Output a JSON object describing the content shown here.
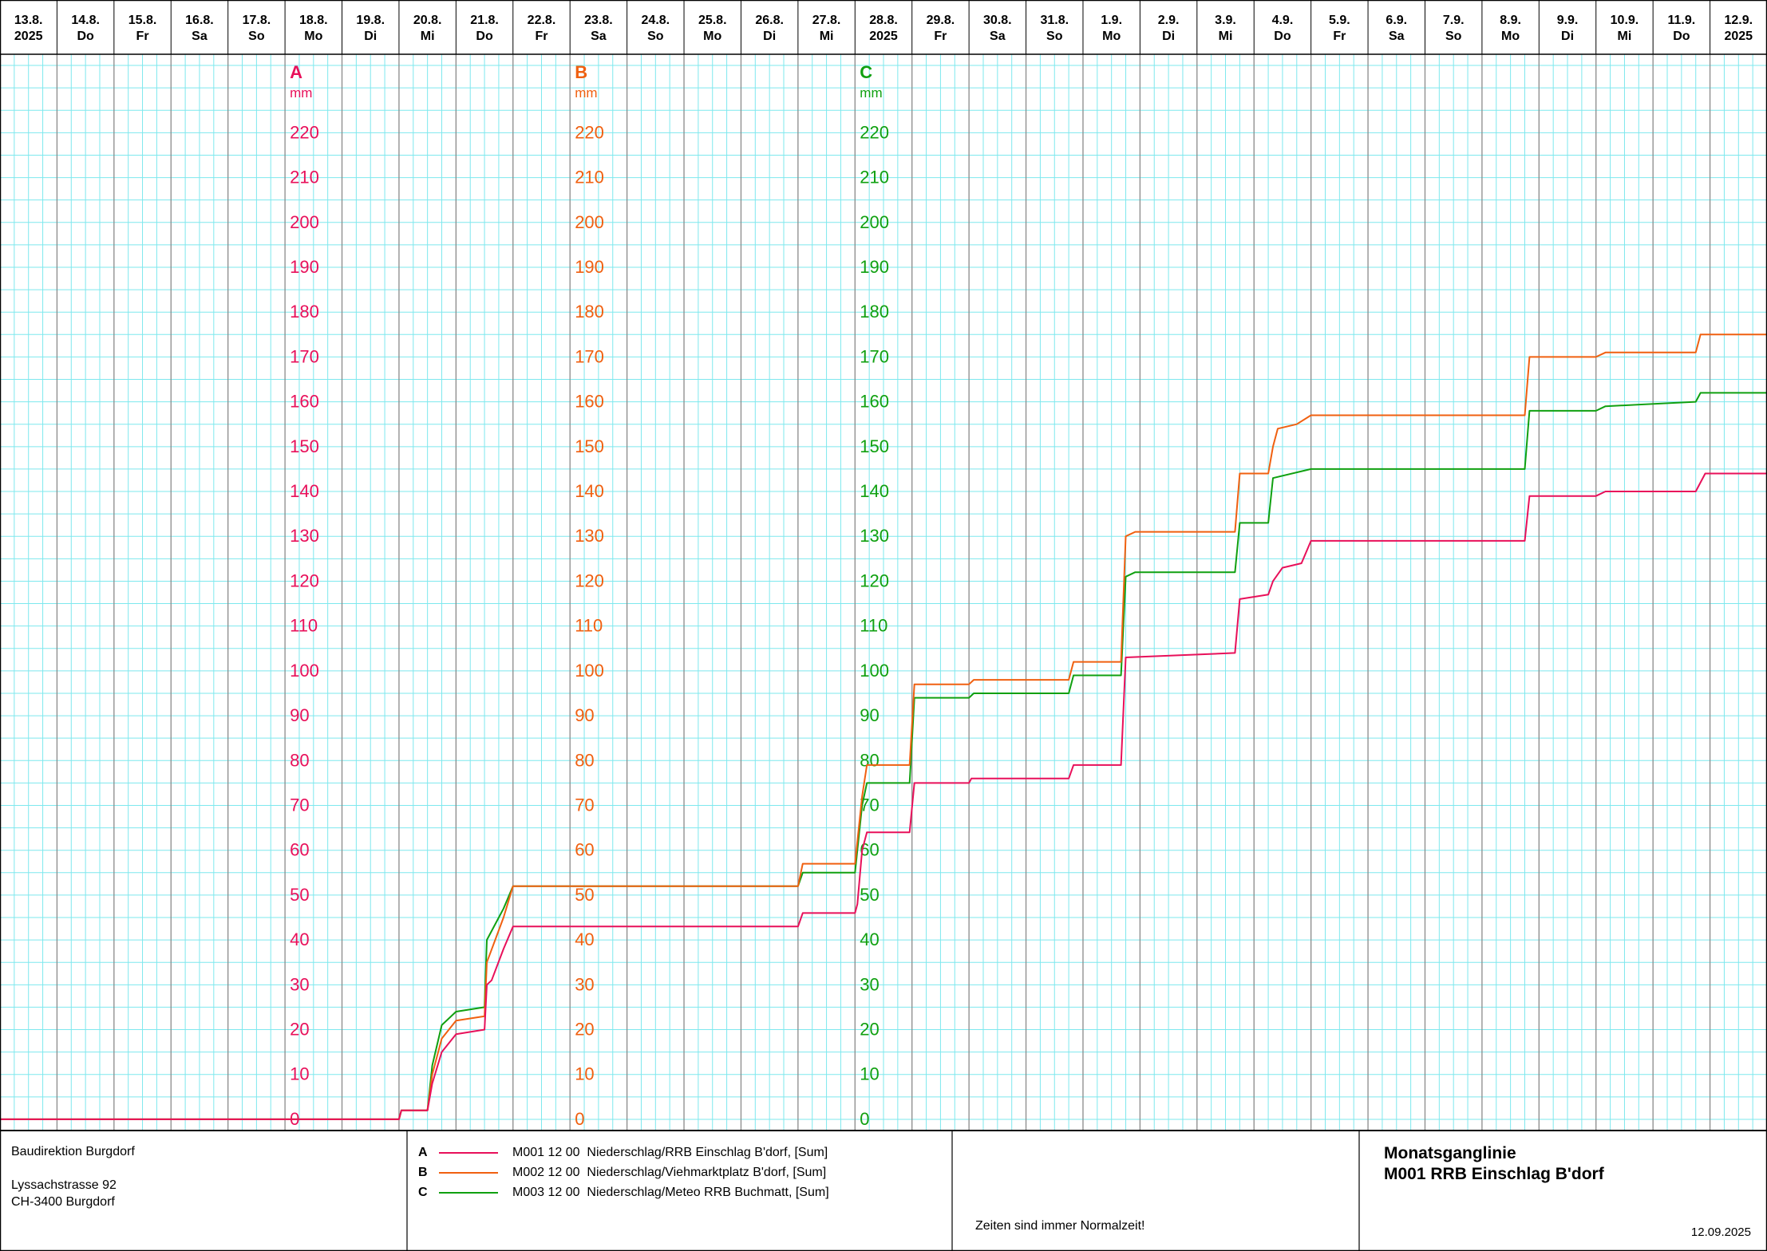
{
  "chart_data": {
    "type": "line",
    "x_axis": {
      "days": [
        {
          "date": "13.8.",
          "sub": "2025"
        },
        {
          "date": "14.8.",
          "sub": "Do"
        },
        {
          "date": "15.8.",
          "sub": "Fr"
        },
        {
          "date": "16.8.",
          "sub": "Sa"
        },
        {
          "date": "17.8.",
          "sub": "So"
        },
        {
          "date": "18.8.",
          "sub": "Mo"
        },
        {
          "date": "19.8.",
          "sub": "Di"
        },
        {
          "date": "20.8.",
          "sub": "Mi"
        },
        {
          "date": "21.8.",
          "sub": "Do"
        },
        {
          "date": "22.8.",
          "sub": "Fr"
        },
        {
          "date": "23.8.",
          "sub": "Sa"
        },
        {
          "date": "24.8.",
          "sub": "So"
        },
        {
          "date": "25.8.",
          "sub": "Mo"
        },
        {
          "date": "26.8.",
          "sub": "Di"
        },
        {
          "date": "27.8.",
          "sub": "Mi"
        },
        {
          "date": "28.8.",
          "sub": "2025"
        },
        {
          "date": "29.8.",
          "sub": "Fr"
        },
        {
          "date": "30.8.",
          "sub": "Sa"
        },
        {
          "date": "31.8.",
          "sub": "So"
        },
        {
          "date": "1.9.",
          "sub": "Mo"
        },
        {
          "date": "2.9.",
          "sub": "Di"
        },
        {
          "date": "3.9.",
          "sub": "Mi"
        },
        {
          "date": "4.9.",
          "sub": "Do"
        },
        {
          "date": "5.9.",
          "sub": "Fr"
        },
        {
          "date": "6.9.",
          "sub": "Sa"
        },
        {
          "date": "7.9.",
          "sub": "So"
        },
        {
          "date": "8.9.",
          "sub": "Mo"
        },
        {
          "date": "9.9.",
          "sub": "Di"
        },
        {
          "date": "10.9.",
          "sub": "Mi"
        },
        {
          "date": "11.9.",
          "sub": "Do"
        },
        {
          "date": "12.9.",
          "sub": "2025"
        }
      ],
      "range": [
        "13.8.2025 00:00",
        "13.9.2025 00:00"
      ],
      "grid": true
    },
    "y_axes": [
      {
        "letter": "A",
        "unit": "mm",
        "color": "#e8105a",
        "day": "18.8."
      },
      {
        "letter": "B",
        "unit": "mm",
        "color": "#f06010",
        "day": "23.8."
      },
      {
        "letter": "C",
        "unit": "mm",
        "color": "#10a010",
        "day": "28.8."
      }
    ],
    "y_ticks": [
      0,
      10,
      20,
      30,
      40,
      50,
      60,
      70,
      80,
      90,
      100,
      110,
      120,
      130,
      140,
      150,
      160,
      170,
      180,
      190,
      200,
      210,
      220
    ],
    "ylim": [
      -2.5,
      237.5
    ],
    "series": [
      {
        "letter": "A",
        "color": "#e8105a",
        "points": [
          [
            "13.8. 00:00",
            0
          ],
          [
            "20.8. 00:00",
            0
          ],
          [
            "20.8. 01:00",
            2
          ],
          [
            "20.8. 12:00",
            2
          ],
          [
            "20.8. 14:00",
            8
          ],
          [
            "20.8. 18:00",
            15
          ],
          [
            "21.8. 00:00",
            19
          ],
          [
            "21.8. 12:00",
            20
          ],
          [
            "21.8. 13:00",
            30
          ],
          [
            "21.8. 15:00",
            31
          ],
          [
            "21.8. 20:00",
            38
          ],
          [
            "22.8. 00:00",
            43
          ],
          [
            "27.8. 00:00",
            43
          ],
          [
            "27.8. 02:00",
            46
          ],
          [
            "28.8. 00:00",
            46
          ],
          [
            "28.8. 01:00",
            48
          ],
          [
            "28.8. 03:00",
            60
          ],
          [
            "28.8. 05:00",
            64
          ],
          [
            "28.8. 23:00",
            64
          ],
          [
            "29.8. 01:00",
            75
          ],
          [
            "30.8. 00:00",
            75
          ],
          [
            "30.8. 01:00",
            76
          ],
          [
            "31.8. 18:00",
            76
          ],
          [
            "31.8. 20:00",
            79
          ],
          [
            "1.9. 16:00",
            79
          ],
          [
            "1.9. 18:00",
            103
          ],
          [
            "3.9. 16:00",
            104
          ],
          [
            "3.9. 18:00",
            116
          ],
          [
            "4.9. 06:00",
            117
          ],
          [
            "4.9. 08:00",
            120
          ],
          [
            "4.9. 12:00",
            123
          ],
          [
            "4.9. 20:00",
            124
          ],
          [
            "5.9. 00:00",
            129
          ],
          [
            "8.9. 18:00",
            129
          ],
          [
            "8.9. 20:00",
            139
          ],
          [
            "10.9. 00:00",
            139
          ],
          [
            "10.9. 04:00",
            140
          ],
          [
            "11.9. 18:00",
            140
          ],
          [
            "11.9. 22:00",
            144
          ],
          [
            "13.9. 00:00",
            144
          ]
        ]
      },
      {
        "letter": "B",
        "color": "#f06010",
        "points": [
          [
            "13.8. 00:00",
            0
          ],
          [
            "20.8. 00:00",
            0
          ],
          [
            "20.8. 01:00",
            2
          ],
          [
            "20.8. 12:00",
            2
          ],
          [
            "20.8. 14:00",
            10
          ],
          [
            "20.8. 18:00",
            18
          ],
          [
            "21.8. 00:00",
            22
          ],
          [
            "21.8. 12:00",
            23
          ],
          [
            "21.8. 13:00",
            35
          ],
          [
            "21.8. 20:00",
            45
          ],
          [
            "22.8. 00:00",
            52
          ],
          [
            "27.8. 00:00",
            52
          ],
          [
            "27.8. 02:00",
            57
          ],
          [
            "28.8. 00:00",
            57
          ],
          [
            "28.8. 03:00",
            72
          ],
          [
            "28.8. 05:00",
            79
          ],
          [
            "28.8. 23:00",
            79
          ],
          [
            "29.8. 01:00",
            97
          ],
          [
            "30.8. 00:00",
            97
          ],
          [
            "30.8. 02:00",
            98
          ],
          [
            "31.8. 18:00",
            98
          ],
          [
            "31.8. 20:00",
            102
          ],
          [
            "1.9. 16:00",
            102
          ],
          [
            "1.9. 18:00",
            130
          ],
          [
            "1.9. 22:00",
            131
          ],
          [
            "3.9. 16:00",
            131
          ],
          [
            "3.9. 18:00",
            144
          ],
          [
            "4.9. 06:00",
            144
          ],
          [
            "4.9. 08:00",
            150
          ],
          [
            "4.9. 10:00",
            154
          ],
          [
            "4.9. 18:00",
            155
          ],
          [
            "5.9. 00:00",
            157
          ],
          [
            "8.9. 18:00",
            157
          ],
          [
            "8.9. 20:00",
            170
          ],
          [
            "10.9. 00:00",
            170
          ],
          [
            "10.9. 04:00",
            171
          ],
          [
            "11.9. 18:00",
            171
          ],
          [
            "11.9. 20:00",
            175
          ],
          [
            "13.9. 00:00",
            175
          ]
        ]
      },
      {
        "letter": "C",
        "color": "#10a010",
        "points": [
          [
            "13.8. 00:00",
            0
          ],
          [
            "20.8. 00:00",
            0
          ],
          [
            "20.8. 01:00",
            2
          ],
          [
            "20.8. 12:00",
            2
          ],
          [
            "20.8. 14:00",
            12
          ],
          [
            "20.8. 18:00",
            21
          ],
          [
            "21.8. 00:00",
            24
          ],
          [
            "21.8. 12:00",
            25
          ],
          [
            "21.8. 13:00",
            40
          ],
          [
            "21.8. 20:00",
            47
          ],
          [
            "22.8. 00:00",
            52
          ],
          [
            "27.8. 00:00",
            52
          ],
          [
            "27.8. 02:00",
            55
          ],
          [
            "28.8. 00:00",
            55
          ],
          [
            "28.8. 03:00",
            70
          ],
          [
            "28.8. 05:00",
            75
          ],
          [
            "28.8. 23:00",
            75
          ],
          [
            "29.8. 01:00",
            94
          ],
          [
            "30.8. 00:00",
            94
          ],
          [
            "30.8. 02:00",
            95
          ],
          [
            "31.8. 18:00",
            95
          ],
          [
            "31.8. 20:00",
            99
          ],
          [
            "1.9. 16:00",
            99
          ],
          [
            "1.9. 18:00",
            121
          ],
          [
            "1.9. 22:00",
            122
          ],
          [
            "3.9. 16:00",
            122
          ],
          [
            "3.9. 18:00",
            133
          ],
          [
            "4.9. 06:00",
            133
          ],
          [
            "4.9. 08:00",
            143
          ],
          [
            "5.9. 00:00",
            145
          ],
          [
            "8.9. 18:00",
            145
          ],
          [
            "8.9. 20:00",
            158
          ],
          [
            "10.9. 00:00",
            158
          ],
          [
            "10.9. 04:00",
            159
          ],
          [
            "11.9. 18:00",
            160
          ],
          [
            "11.9. 20:00",
            162
          ],
          [
            "13.9. 00:00",
            162
          ]
        ]
      }
    ]
  },
  "footer": {
    "org": "Baudirektion Burgdorf",
    "street": "Lyssachstrasse 92",
    "city": "CH-3400 Burgdorf",
    "legend": [
      {
        "letter": "A",
        "text": "M001 12 00  Niederschlag/RRB Einschlag B'dorf, [Sum]",
        "color": "#e8105a"
      },
      {
        "letter": "B",
        "text": "M002 12 00  Niederschlag/Viehmarktplatz B'dorf, [Sum]",
        "color": "#f06010"
      },
      {
        "letter": "C",
        "text": "M003 12 00  Niederschlag/Meteo RRB Buchmatt, [Sum]",
        "color": "#10a010"
      }
    ],
    "note": "Zeiten sind immer Normalzeit!",
    "title_line1": "Monatsganglinie",
    "title_line2": "M001 RRB Einschlag B'dorf",
    "date": "12.09.2025"
  }
}
